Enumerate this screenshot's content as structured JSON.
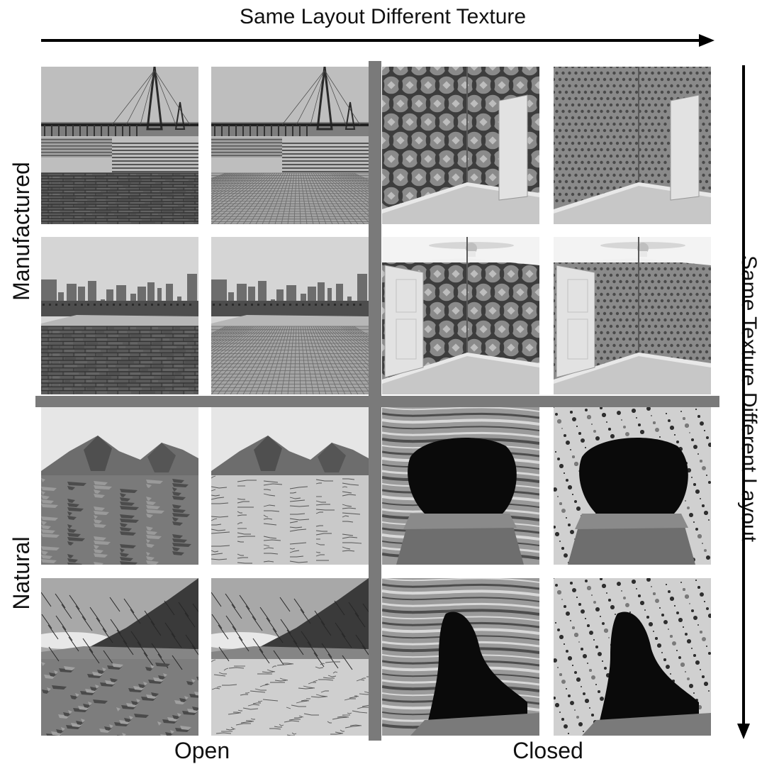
{
  "header": {
    "title": "Same Layout Different Texture"
  },
  "side": {
    "title": "Same Texture Different Layout"
  },
  "rows": [
    {
      "label": "Manufactured"
    },
    {
      "label": "Natural"
    }
  ],
  "columns": [
    {
      "label": "Open"
    },
    {
      "label": "Closed"
    }
  ],
  "images": [
    {
      "scene": "bridge-pier-wood-floor"
    },
    {
      "scene": "bridge-pier-tile-floor"
    },
    {
      "scene": "room-large-pattern-wallpaper"
    },
    {
      "scene": "room-small-pattern-wallpaper"
    },
    {
      "scene": "rooftop-city-wood-floor"
    },
    {
      "scene": "rooftop-city-tile-floor"
    },
    {
      "scene": "room-fan-large-pattern"
    },
    {
      "scene": "room-fan-small-pattern"
    },
    {
      "scene": "desert-mountains-rough-ground"
    },
    {
      "scene": "desert-mountains-cracked-ground"
    },
    {
      "scene": "cave-banded-rock"
    },
    {
      "scene": "cave-speckled-rock"
    },
    {
      "scene": "hillside-rough-ground"
    },
    {
      "scene": "hillside-cracked-ground"
    },
    {
      "scene": "cave-arch-banded-rock"
    },
    {
      "scene": "cave-arch-speckled-rock"
    }
  ]
}
